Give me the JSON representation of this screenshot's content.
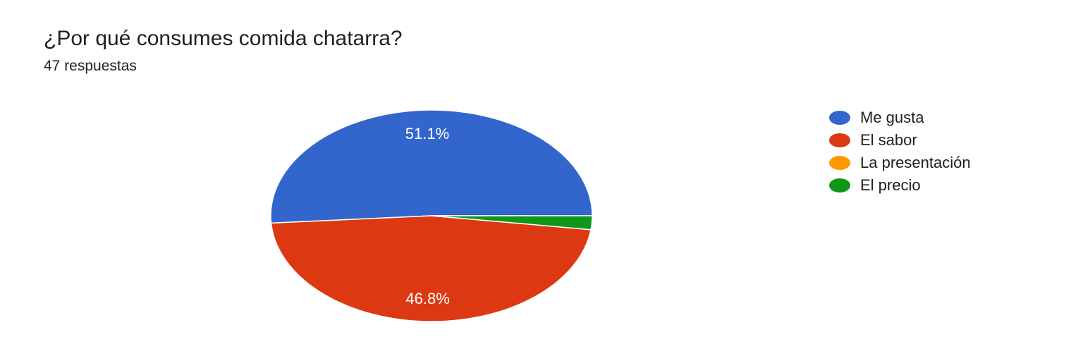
{
  "title": "¿Por qué consumes comida chatarra?",
  "subtitle": "47 respuestas",
  "chart_data": {
    "type": "pie",
    "title": "¿Por qué consumes comida chatarra?",
    "categories": [
      "Me gusta",
      "El sabor",
      "La presentación",
      "El precio"
    ],
    "values": [
      51.1,
      46.8,
      0,
      2.1
    ],
    "labels": [
      "51.1%",
      "46.8%",
      "",
      ""
    ],
    "colors": [
      "#3366cc",
      "#dc3912",
      "#ff9900",
      "#109618"
    ],
    "legend": "right"
  }
}
